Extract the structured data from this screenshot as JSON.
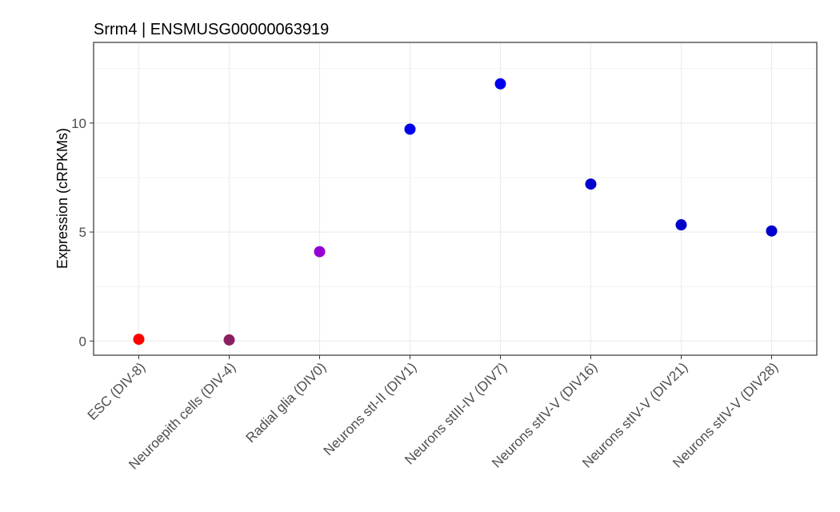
{
  "chart_data": {
    "type": "scatter",
    "title": "Srrm4 | ENSMUSG00000063919",
    "xlabel": "",
    "ylabel": "Expression (cRPKMs)",
    "categories": [
      "ESC (DIV-8)",
      "Neuroepith cells (DIV-4)",
      "Radial glia (DIV0)",
      "Neurons stI-II (DIV1)",
      "Neurons stIII-IV (DIV7)",
      "Neurons stIV-V (DIV16)",
      "Neurons stIV-V (DIV21)",
      "Neurons stIV-V (DIV28)"
    ],
    "values": [
      0.08,
      0.05,
      4.1,
      9.72,
      11.8,
      7.2,
      5.33,
      5.05
    ],
    "point_colors": [
      "#ff0000",
      "#8b2060",
      "#9400d3",
      "#0000ee",
      "#0000ee",
      "#0000cd",
      "#0000cd",
      "#0000cd"
    ],
    "ylim": [
      -0.65,
      13.7
    ],
    "yticks": [
      0,
      5,
      10
    ],
    "grid": true,
    "legend": "none"
  }
}
